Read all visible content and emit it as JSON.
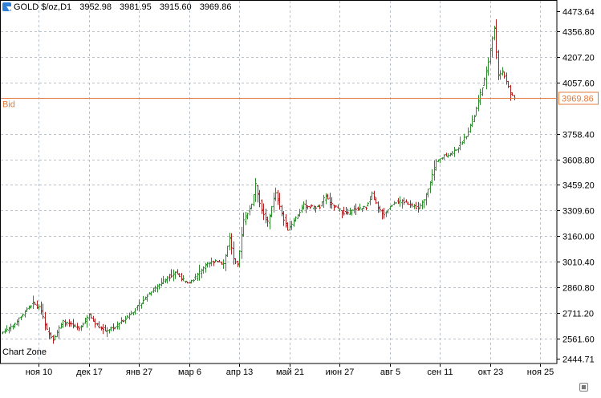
{
  "header": {
    "symbol": "GOLD $/oz,D1",
    "open": "3952.98",
    "high": "3981.95",
    "low": "3915.60",
    "close": "3969.86"
  },
  "chart_label": "Chart Zone",
  "bid": {
    "label": "Bid",
    "price": 3969.86,
    "price_label": "3969.86"
  },
  "colors": {
    "up": "#2e8b2e",
    "down": "#b02020",
    "grid": "#b8c0cc",
    "bid_line": "#e07b3c",
    "axis_text": "#000000"
  },
  "chart_data": {
    "type": "candlestick",
    "ylim": [
      2444.71,
      4473.64
    ],
    "grid": true,
    "y_ticks": [
      {
        "value": 4473.64,
        "label": "4473.64"
      },
      {
        "value": 4356.8,
        "label": "4356.80"
      },
      {
        "value": 4207.2,
        "label": "4207.20"
      },
      {
        "value": 4057.6,
        "label": "4057.60"
      },
      {
        "value": 3758.4,
        "label": "3758.40"
      },
      {
        "value": 3608.8,
        "label": "3608.80"
      },
      {
        "value": 3459.2,
        "label": "3459.20"
      },
      {
        "value": 3309.6,
        "label": "3309.60"
      },
      {
        "value": 3160.0,
        "label": "3160.00"
      },
      {
        "value": 3010.4,
        "label": "3010.40"
      },
      {
        "value": 2860.8,
        "label": "2860.80"
      },
      {
        "value": 2711.2,
        "label": "2711.20"
      },
      {
        "value": 2561.6,
        "label": "2561.60"
      },
      {
        "value": 2444.71,
        "label": "2444.71"
      }
    ],
    "x_ticks": [
      {
        "index": 18,
        "label": "ноя 10"
      },
      {
        "index": 43,
        "label": "дек 17"
      },
      {
        "index": 68,
        "label": "янв 27"
      },
      {
        "index": 93,
        "label": "мар 6"
      },
      {
        "index": 118,
        "label": "апр 13"
      },
      {
        "index": 143,
        "label": "май 21"
      },
      {
        "index": 168,
        "label": "июн 27"
      },
      {
        "index": 193,
        "label": "авг 5"
      },
      {
        "index": 218,
        "label": "сен 11"
      },
      {
        "index": 243,
        "label": "окт 23"
      },
      {
        "index": 268,
        "label": "ноя 25"
      }
    ],
    "total_slots": 278,
    "anchors": [
      [
        0,
        2600
      ],
      [
        6,
        2650
      ],
      [
        11,
        2720
      ],
      [
        15,
        2770
      ],
      [
        19,
        2730
      ],
      [
        22,
        2610
      ],
      [
        25,
        2560
      ],
      [
        30,
        2660
      ],
      [
        34,
        2640
      ],
      [
        38,
        2620
      ],
      [
        43,
        2700
      ],
      [
        47,
        2640
      ],
      [
        51,
        2610
      ],
      [
        56,
        2630
      ],
      [
        62,
        2690
      ],
      [
        68,
        2760
      ],
      [
        74,
        2840
      ],
      [
        80,
        2900
      ],
      [
        86,
        2950
      ],
      [
        92,
        2880
      ],
      [
        96,
        2920
      ],
      [
        100,
        2980
      ],
      [
        106,
        3020
      ],
      [
        110,
        3000
      ],
      [
        113,
        3150
      ],
      [
        115,
        3020
      ],
      [
        117,
        2990
      ],
      [
        120,
        3250
      ],
      [
        124,
        3350
      ],
      [
        126,
        3460
      ],
      [
        129,
        3310
      ],
      [
        132,
        3240
      ],
      [
        136,
        3420
      ],
      [
        139,
        3290
      ],
      [
        142,
        3200
      ],
      [
        145,
        3250
      ],
      [
        150,
        3340
      ],
      [
        154,
        3330
      ],
      [
        158,
        3330
      ],
      [
        161,
        3400
      ],
      [
        163,
        3350
      ],
      [
        167,
        3320
      ],
      [
        171,
        3290
      ],
      [
        176,
        3320
      ],
      [
        181,
        3330
      ],
      [
        184,
        3410
      ],
      [
        187,
        3320
      ],
      [
        190,
        3290
      ],
      [
        195,
        3360
      ],
      [
        199,
        3360
      ],
      [
        203,
        3350
      ],
      [
        207,
        3320
      ],
      [
        210,
        3370
      ],
      [
        213,
        3480
      ],
      [
        216,
        3590
      ],
      [
        220,
        3630
      ],
      [
        223,
        3640
      ],
      [
        227,
        3680
      ],
      [
        231,
        3750
      ],
      [
        235,
        3860
      ],
      [
        238,
        3990
      ],
      [
        241,
        4120
      ],
      [
        243,
        4250
      ],
      [
        245,
        4380
      ],
      [
        247,
        4100
      ],
      [
        249,
        4120
      ],
      [
        251,
        4070
      ],
      [
        253,
        3990
      ],
      [
        255,
        3970
      ]
    ]
  }
}
